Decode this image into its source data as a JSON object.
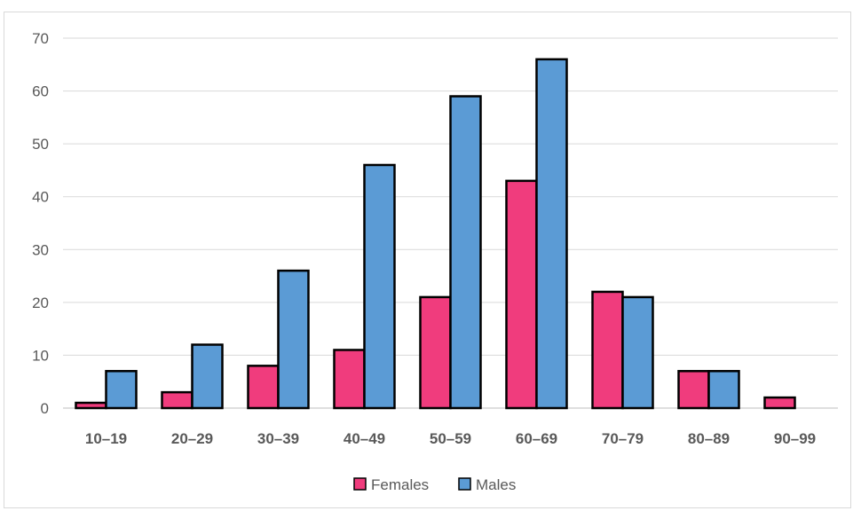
{
  "chart_data": {
    "type": "bar",
    "title": "",
    "xlabel": "",
    "ylabel": "",
    "categories": [
      "10–19",
      "20–29",
      "30–39",
      "40–49",
      "50–59",
      "60–69",
      "70–79",
      "80–89",
      "90–99"
    ],
    "series": [
      {
        "name": "Females",
        "color": "#f03c7d",
        "values": [
          1,
          3,
          8,
          11,
          21,
          43,
          22,
          7,
          2
        ]
      },
      {
        "name": "Males",
        "color": "#5b9bd5",
        "values": [
          7,
          12,
          26,
          46,
          59,
          66,
          21,
          7,
          0
        ]
      }
    ],
    "ylim": [
      0,
      70
    ],
    "yticks": [
      0,
      10,
      20,
      30,
      40,
      50,
      60,
      70
    ],
    "grid": true,
    "legend_position": "bottom"
  }
}
